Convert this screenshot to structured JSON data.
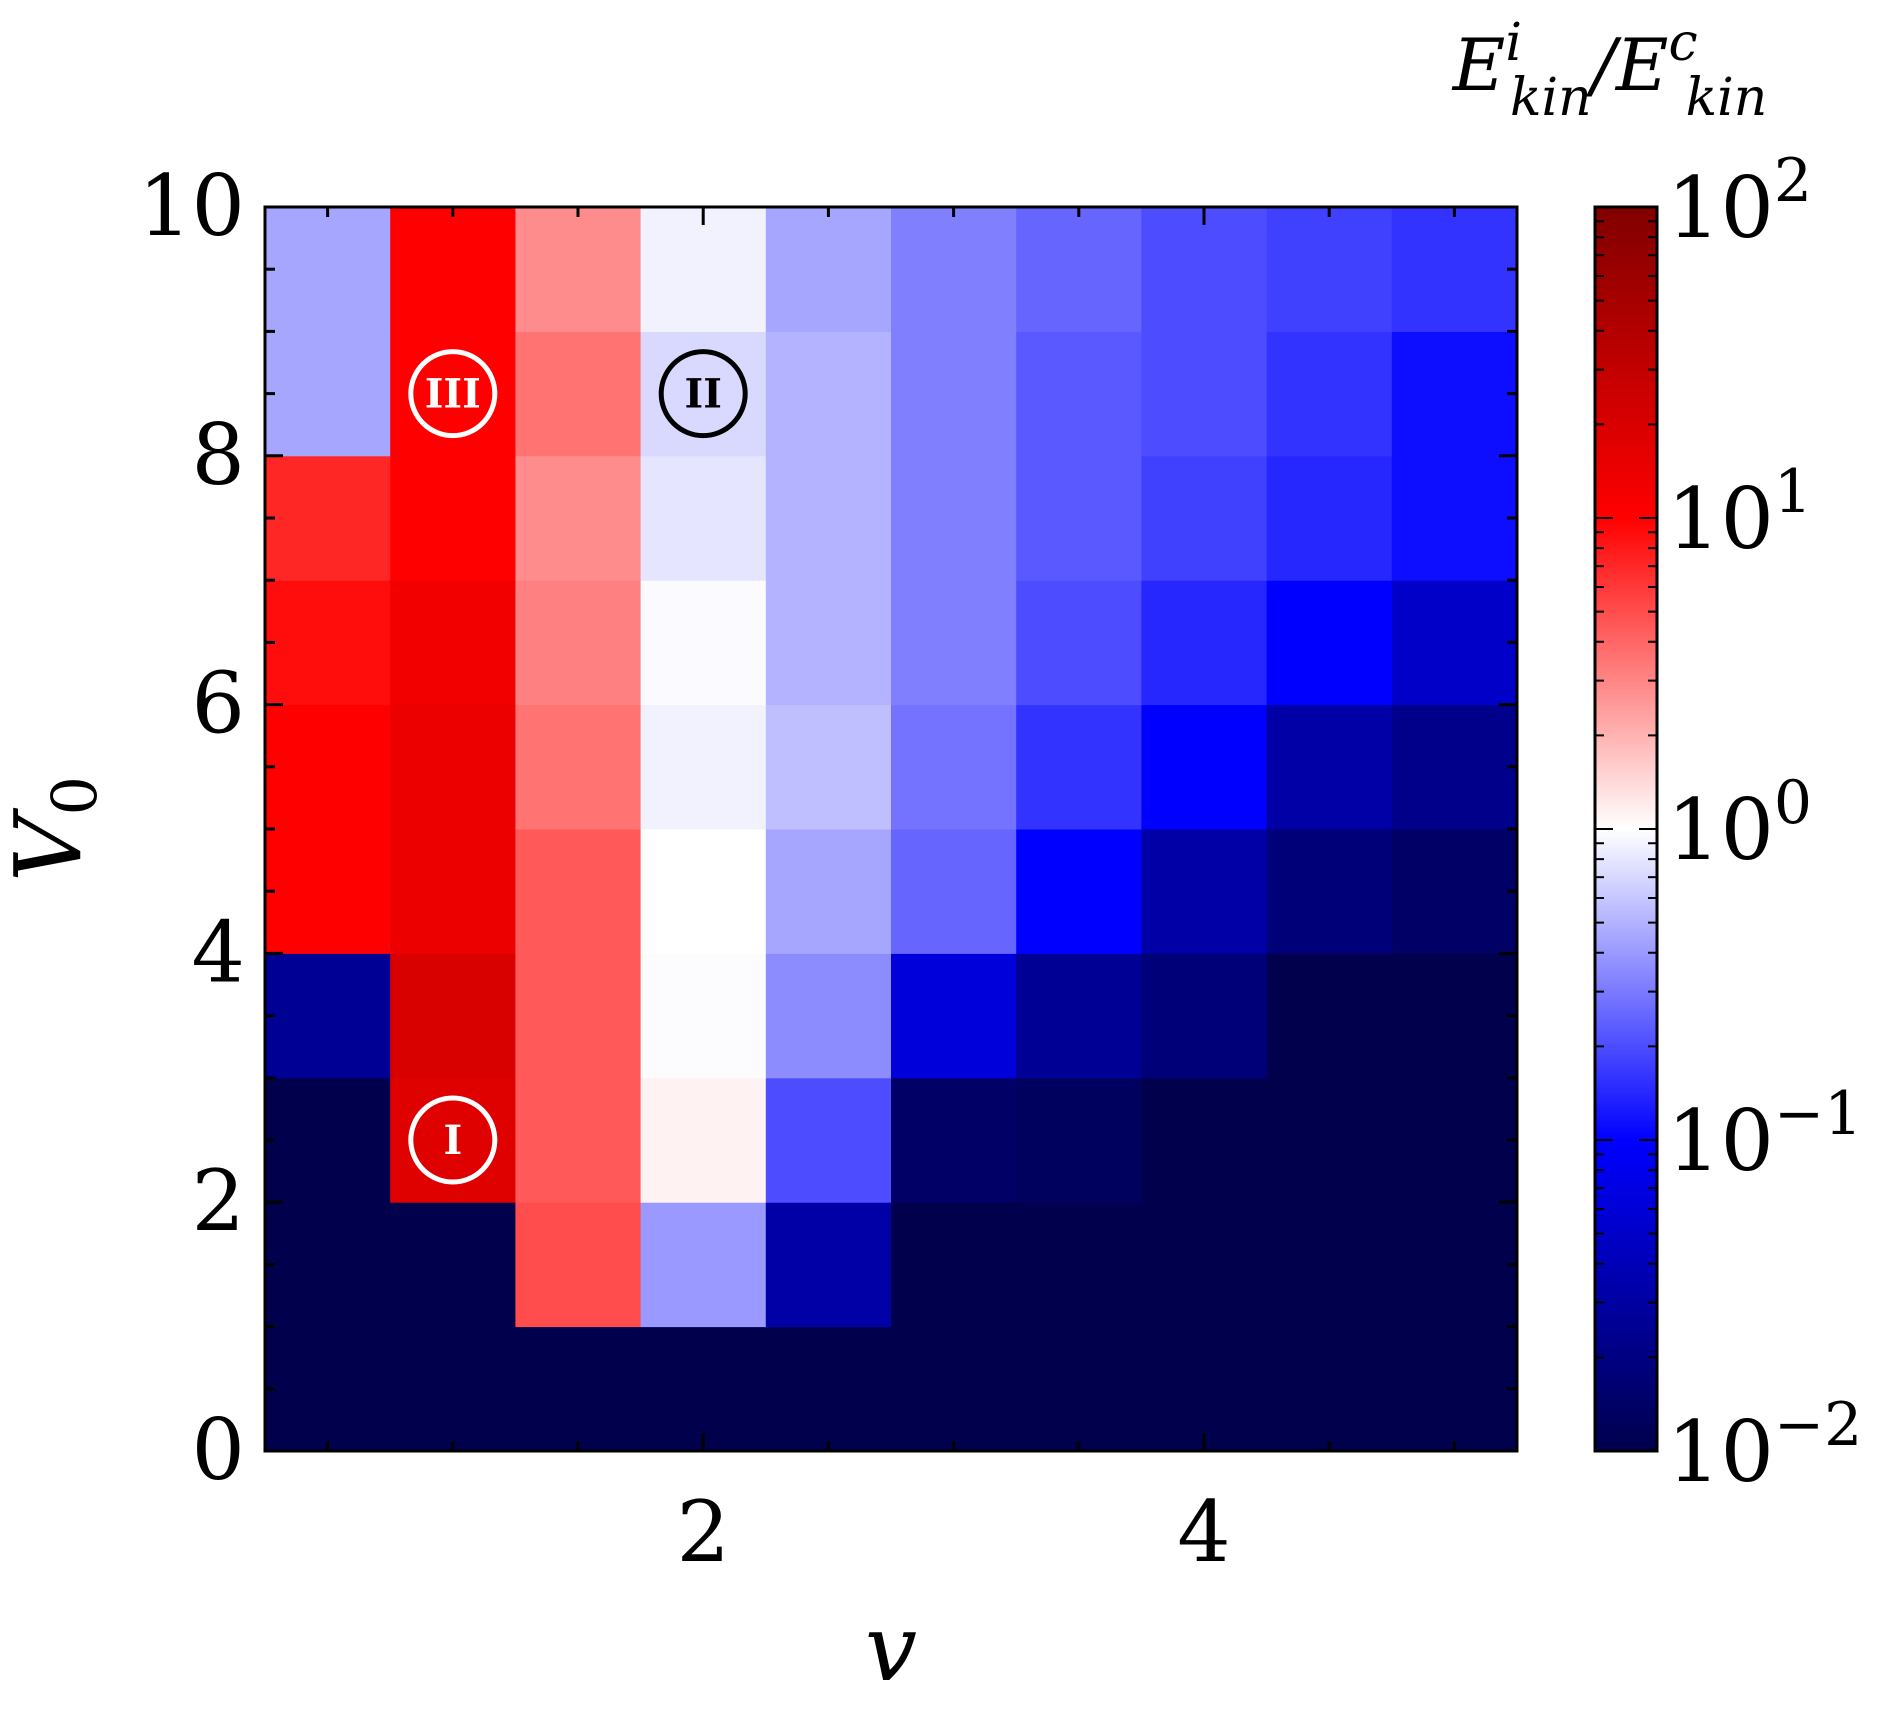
{
  "chart_data": {
    "type": "heatmap",
    "xlabel": "v",
    "ylabel": "V",
    "ylabel_sub": "0",
    "colorbar_title": {
      "numerator": "E",
      "numerator_sup": "i",
      "denominator": "E",
      "denominator_sup": "c",
      "sub": "kin"
    },
    "x_ticks": [
      "2",
      "4"
    ],
    "x_tick_values": [
      2,
      4
    ],
    "y_ticks": [
      "0",
      "2",
      "4",
      "6",
      "8",
      "10"
    ],
    "y_tick_values": [
      0,
      2,
      4,
      6,
      8,
      10
    ],
    "xlim": [
      0.25,
      5.25
    ],
    "ylim": [
      0,
      10
    ],
    "x": [
      0.5,
      1.0,
      1.5,
      2.0,
      2.5,
      3.0,
      3.5,
      4.0,
      4.5,
      5.0
    ],
    "y": [
      0.5,
      1.5,
      2.5,
      3.5,
      4.5,
      5.5,
      6.5,
      7.5,
      8.5,
      9.5
    ],
    "colorbar": {
      "scale": "log",
      "range": [
        0.01,
        100
      ],
      "colormap": "seismic",
      "tick_base": "10",
      "tick_exponents": [
        "2",
        "1",
        "0",
        "−1",
        "−2"
      ]
    },
    "log10_values_rows_bottom_to_top": [
      [
        -2.0,
        -2.0,
        -2.0,
        -2.0,
        -2.0,
        -2.0,
        -2.0,
        -2.0,
        -2.0,
        -2.0
      ],
      [
        -2.0,
        -2.0,
        0.7,
        -0.4,
        -1.5,
        -2.0,
        -2.0,
        -2.0,
        -2.0,
        -2.0
      ],
      [
        -2.0,
        1.25,
        0.65,
        0.05,
        -0.7,
        -1.85,
        -1.9,
        -2.0,
        -2.0,
        -2.0
      ],
      [
        -1.6,
        1.3,
        0.65,
        -0.01,
        -0.45,
        -1.2,
        -1.6,
        -1.75,
        -2.0,
        -2.0
      ],
      [
        1.0,
        1.15,
        0.65,
        0.0,
        -0.35,
        -0.6,
        -1.0,
        -1.5,
        -1.75,
        -1.85
      ],
      [
        1.0,
        1.15,
        0.55,
        -0.05,
        -0.25,
        -0.55,
        -0.8,
        -1.0,
        -1.5,
        -1.65
      ],
      [
        0.95,
        1.1,
        0.5,
        -0.02,
        -0.3,
        -0.5,
        -0.7,
        -0.85,
        -1.0,
        -1.3
      ],
      [
        0.85,
        1.0,
        0.45,
        -0.1,
        -0.3,
        -0.5,
        -0.65,
        -0.75,
        -0.85,
        -0.95
      ],
      [
        -0.35,
        1.0,
        0.55,
        -0.15,
        -0.3,
        -0.5,
        -0.65,
        -0.7,
        -0.8,
        -0.95
      ],
      [
        -0.35,
        1.0,
        0.45,
        -0.05,
        -0.35,
        -0.5,
        -0.6,
        -0.7,
        -0.75,
        -0.8
      ]
    ],
    "annotations": [
      {
        "text": "III",
        "x": 1.0,
        "y": 8.5,
        "color": "#ffffff"
      },
      {
        "text": "II",
        "x": 2.0,
        "y": 8.5,
        "color": "#000000"
      },
      {
        "text": "I",
        "x": 1.0,
        "y": 2.5,
        "color": "#ffffff"
      }
    ]
  }
}
